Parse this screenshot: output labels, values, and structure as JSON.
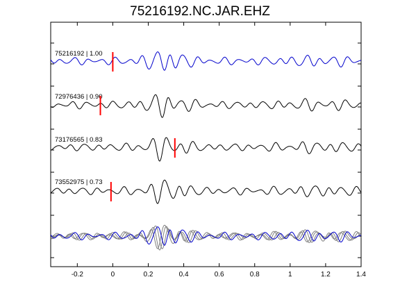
{
  "chart_data": {
    "type": "line",
    "title": "75216192.NC.JAR.EHZ",
    "xlabel": "",
    "ylabel": "",
    "xlim": [
      -0.35,
      1.4
    ],
    "x_ticks": [
      -0.2,
      0,
      0.2,
      0.4,
      0.6,
      0.8,
      1,
      1.2,
      1.4
    ],
    "x_tick_labels": [
      "-0.2",
      "0",
      "0.2",
      "0.4",
      "0.6",
      "0.8",
      "1",
      "1.2",
      "1.4"
    ],
    "grid": false,
    "colors": {
      "master": "#0000cc",
      "trace": "#000000",
      "overlay": "#808080",
      "pick": "#ff0000"
    },
    "traces": [
      {
        "label": "75216192 | 1.00",
        "id": "75216192",
        "cc": 1.0,
        "pick_time": 0.0,
        "color": "master"
      },
      {
        "label": "72976436 | 0.90",
        "id": "72976436",
        "cc": 0.9,
        "pick_time": -0.07,
        "color": "trace"
      },
      {
        "label": "73176565 | 0.83",
        "id": "73176565",
        "cc": 0.83,
        "pick_time": 0.35,
        "color": "trace"
      },
      {
        "label": "73552975 | 0.73",
        "id": "73552975",
        "cc": 0.73,
        "pick_time": -0.01,
        "color": "trace"
      }
    ],
    "stack": {
      "description_hidden": true
    }
  }
}
